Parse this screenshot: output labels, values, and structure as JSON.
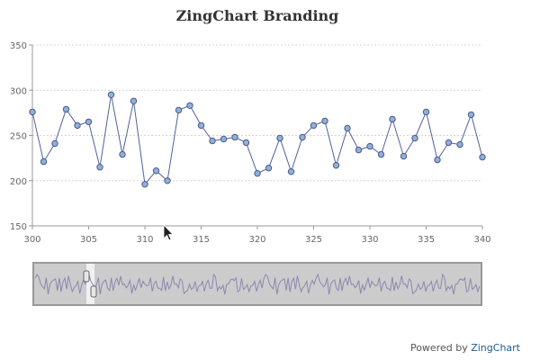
{
  "chart_data": {
    "type": "line",
    "title": "ZingChart Branding",
    "xlabel": "",
    "ylabel": "",
    "x": [
      300,
      301,
      302,
      303,
      304,
      305,
      306,
      307,
      308,
      309,
      310,
      311,
      312,
      313,
      314,
      315,
      316,
      317,
      318,
      319,
      320,
      321,
      322,
      323,
      324,
      325,
      326,
      327,
      328,
      329,
      330,
      331,
      332,
      333,
      334,
      335,
      336,
      337,
      338,
      339,
      340
    ],
    "values": [
      276,
      221,
      241,
      279,
      261,
      265,
      215,
      295,
      229,
      288,
      196,
      211,
      200,
      278,
      283,
      261,
      244,
      246,
      248,
      242,
      208,
      214,
      247,
      210,
      248,
      261,
      266,
      217,
      258,
      234,
      238,
      229,
      268,
      227,
      247,
      276,
      223,
      242,
      240,
      273,
      226
    ],
    "xlim": [
      300,
      340
    ],
    "ylim": [
      150,
      350
    ],
    "x_ticks": [
      300,
      305,
      310,
      315,
      320,
      325,
      330,
      335,
      340
    ],
    "y_ticks": [
      150,
      200,
      250,
      300,
      350
    ],
    "grid": true,
    "legend": "none",
    "colors": {
      "line": "#525f9a",
      "marker_fill": "#8fb0d8",
      "marker_stroke": "#4d5a8e",
      "grid": "#d4d4d4"
    },
    "preview": {
      "visible": true,
      "selected_range": [
        300,
        340
      ],
      "colors": {
        "background": "#cccccc",
        "border": "#999999",
        "line": "#8a88b0",
        "mask": "#f5f5f5"
      }
    }
  },
  "credit": {
    "prefix": "Powered by ",
    "brand": "ZingChart"
  }
}
